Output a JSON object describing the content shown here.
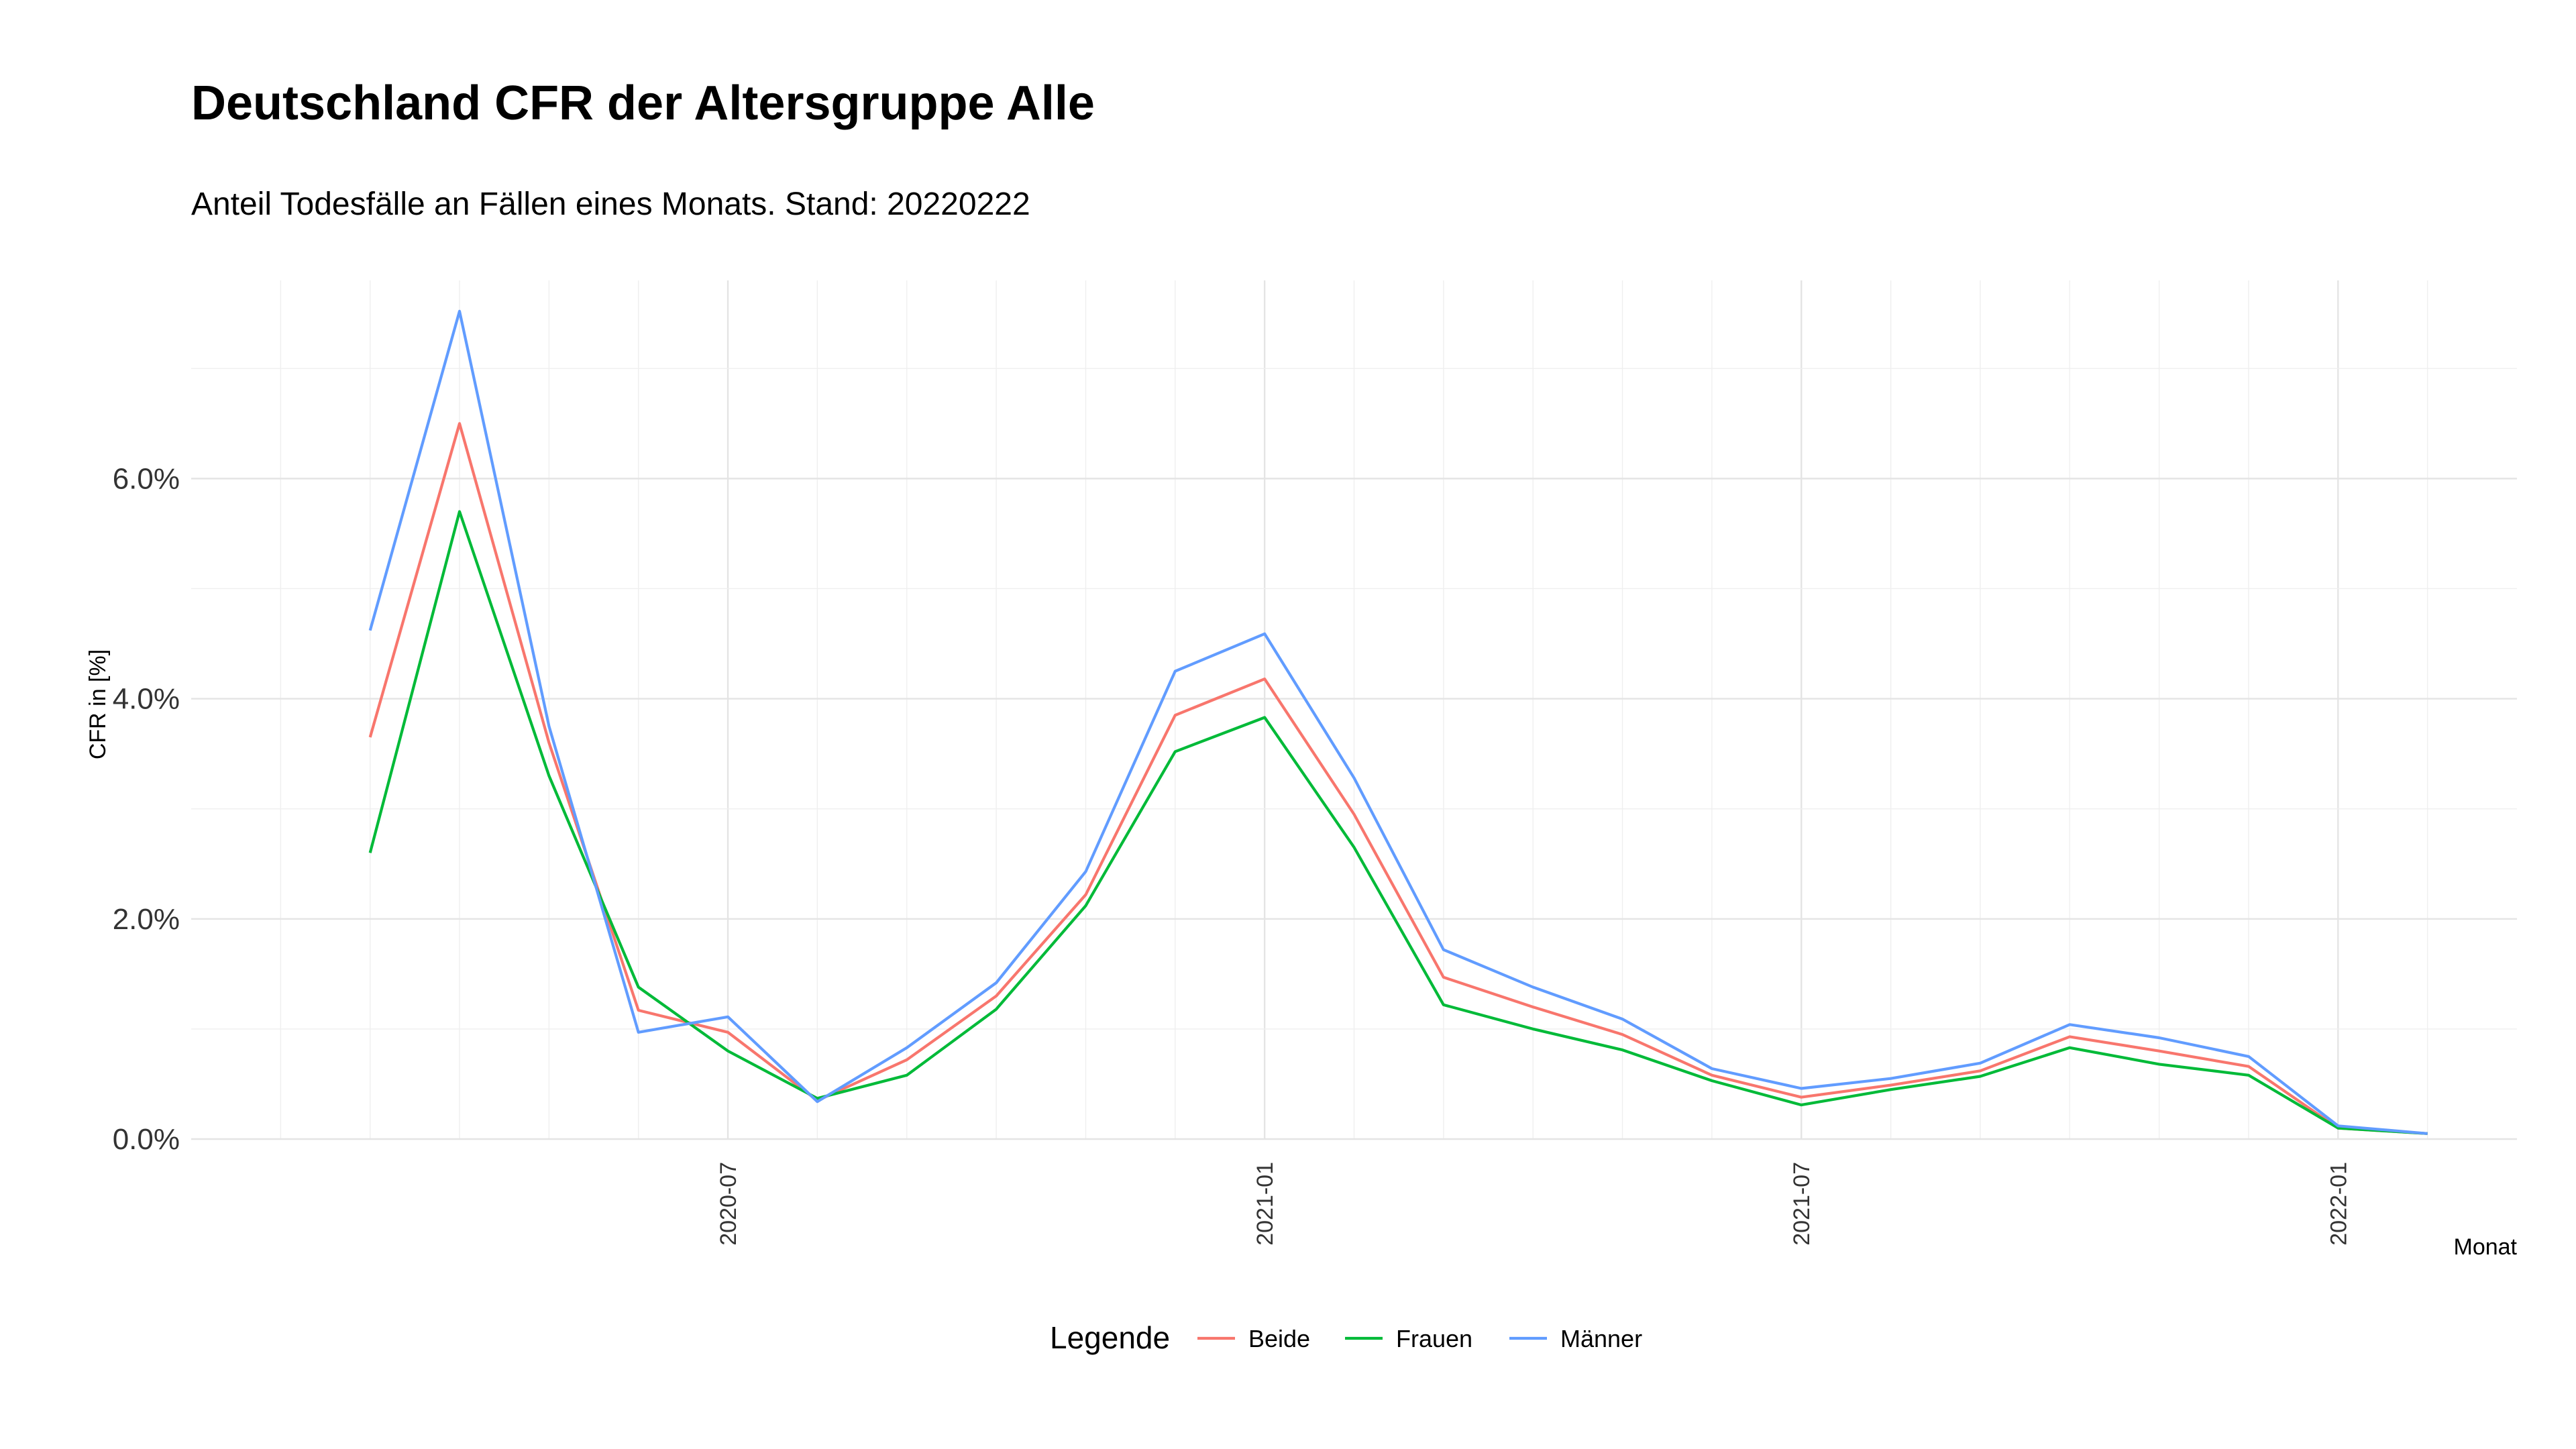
{
  "chart_data": {
    "type": "line",
    "title": "Deutschland CFR der Altersgruppe Alle",
    "subtitle": "Anteil Todesfälle an Fällen eines Monats. Stand: 20220222",
    "xlabel": "Monat",
    "ylabel": "CFR in [%]",
    "x": [
      "2020-03",
      "2020-04",
      "2020-05",
      "2020-06",
      "2020-07",
      "2020-08",
      "2020-09",
      "2020-10",
      "2020-11",
      "2020-12",
      "2021-01",
      "2021-02",
      "2021-03",
      "2021-04",
      "2021-05",
      "2021-06",
      "2021-07",
      "2021-08",
      "2021-09",
      "2021-10",
      "2021-11",
      "2021-12",
      "2022-01",
      "2022-02"
    ],
    "x_ticks": [
      "2020-07",
      "2021-01",
      "2021-07",
      "2022-01"
    ],
    "xlim": [
      "2020-01",
      "2022-03"
    ],
    "ylim": [
      0,
      7.8
    ],
    "y_ticks": [
      0,
      2,
      4,
      6
    ],
    "y_tick_labels": [
      "0.0%",
      "2.0%",
      "4.0%",
      "6.0%"
    ],
    "grid": true,
    "legend": {
      "title": "Legende",
      "placement": "bottom"
    },
    "series": [
      {
        "name": "Beide",
        "color": "#F8766D",
        "values": [
          3.65,
          6.5,
          3.6,
          1.17,
          0.97,
          0.35,
          0.72,
          1.3,
          2.22,
          3.85,
          4.18,
          2.95,
          1.47,
          1.2,
          0.95,
          0.58,
          0.38,
          0.49,
          0.62,
          0.93,
          0.8,
          0.66,
          0.1,
          0.05
        ]
      },
      {
        "name": "Frauen",
        "color": "#00BA38",
        "values": [
          2.6,
          5.7,
          3.3,
          1.38,
          0.8,
          0.37,
          0.58,
          1.18,
          2.12,
          3.52,
          3.83,
          2.65,
          1.22,
          1.0,
          0.81,
          0.53,
          0.31,
          0.45,
          0.57,
          0.83,
          0.68,
          0.58,
          0.1,
          0.05
        ]
      },
      {
        "name": "Männer",
        "color": "#619CFF",
        "values": [
          4.62,
          7.52,
          3.75,
          0.97,
          1.11,
          0.34,
          0.83,
          1.42,
          2.43,
          4.25,
          4.59,
          3.28,
          1.72,
          1.38,
          1.09,
          0.64,
          0.46,
          0.55,
          0.69,
          1.04,
          0.92,
          0.75,
          0.12,
          0.05
        ]
      }
    ]
  }
}
